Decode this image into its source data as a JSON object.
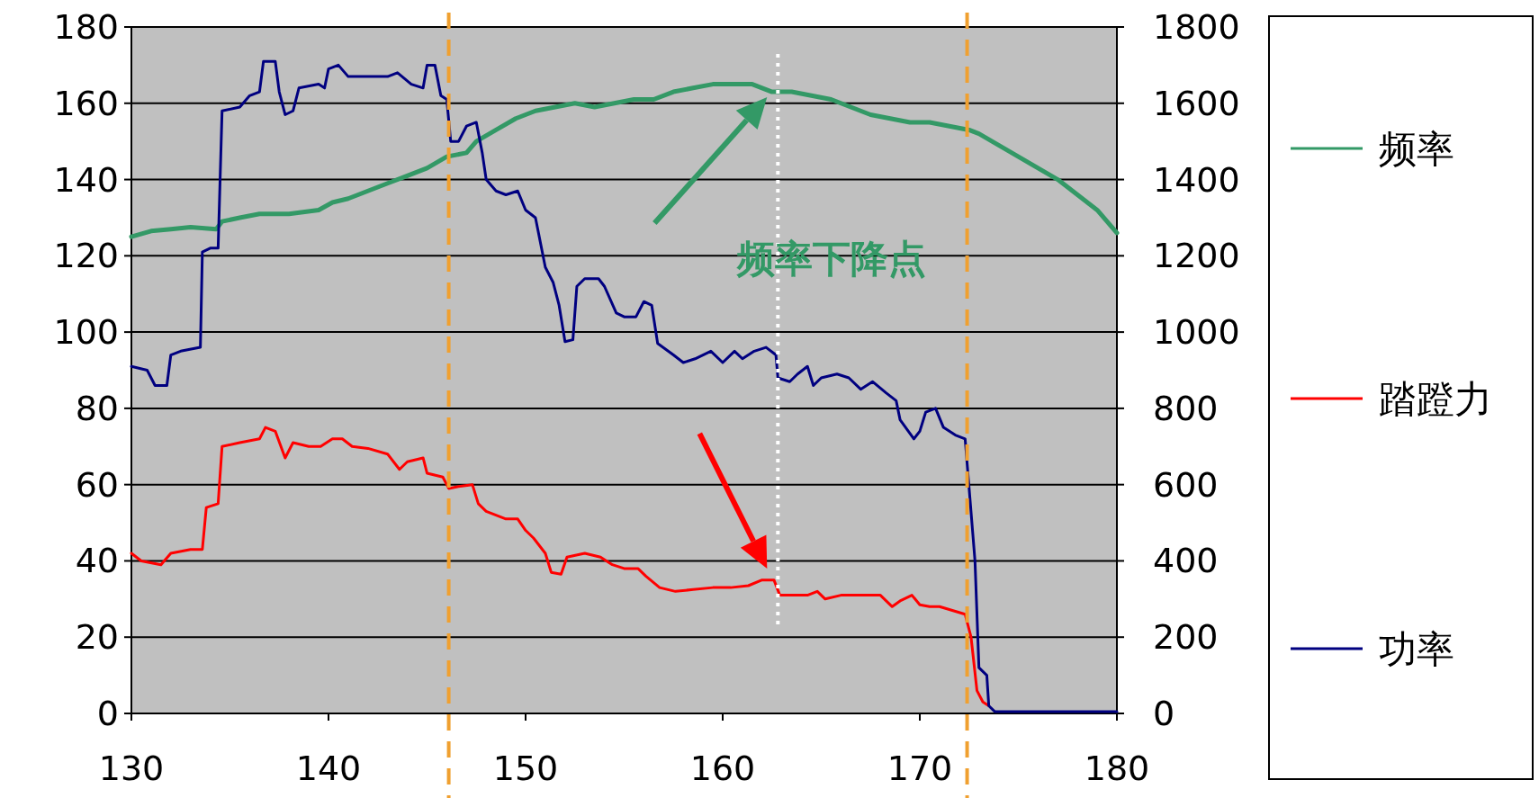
{
  "chart_data": {
    "type": "line",
    "xlim": [
      130,
      180
    ],
    "xticks": [
      130,
      140,
      150,
      160,
      170,
      180
    ],
    "ylim": [
      0,
      180
    ],
    "yticks": [
      0,
      20,
      40,
      60,
      80,
      100,
      120,
      140,
      160,
      180
    ],
    "y2lim": [
      0,
      1800
    ],
    "y2ticks": [
      0,
      200,
      400,
      600,
      800,
      1000,
      1200,
      1400,
      1600,
      1800
    ],
    "grid": "y",
    "legend": "right",
    "series": [
      {
        "name": "频率",
        "color": "#339966",
        "x": [
          130,
          131,
          132,
          133,
          134.3,
          134.6,
          135.5,
          136.5,
          138,
          139.5,
          140.2,
          141,
          142,
          143,
          144,
          145,
          146,
          147,
          147.5,
          148.5,
          149.5,
          150.5,
          151.5,
          152.5,
          153.5,
          154.5,
          155.5,
          156.5,
          157.5,
          158.5,
          159.5,
          160.5,
          161.5,
          162,
          162.5,
          163.5,
          164.5,
          165.5,
          166.5,
          167.5,
          168.5,
          169.5,
          170.5,
          171.5,
          172.5,
          173,
          174,
          175,
          176,
          177,
          178,
          179,
          180
        ],
        "values": [
          125,
          126.5,
          127,
          127.5,
          127,
          129,
          130,
          131,
          131,
          132,
          134,
          135,
          137,
          139,
          141,
          143,
          146,
          147,
          150,
          153,
          156,
          158,
          159,
          160,
          159,
          160,
          161,
          161,
          163,
          164,
          165,
          165,
          165,
          164,
          163,
          163,
          162,
          161,
          159,
          157,
          156,
          155,
          155,
          154,
          153,
          152,
          149,
          146,
          143,
          140,
          136,
          132,
          126
        ]
      },
      {
        "name": "踏蹬力",
        "color": "#ff0000",
        "x": [
          130,
          130.5,
          131.5,
          132,
          133,
          133.6,
          133.8,
          134.4,
          134.6,
          135.5,
          136.5,
          136.8,
          137.3,
          137.8,
          138.2,
          139,
          139.6,
          140.2,
          140.7,
          141.2,
          142,
          143,
          143.6,
          144,
          144.8,
          145,
          145.8,
          146.1,
          146.6,
          147.3,
          147.6,
          148,
          149,
          149.6,
          150,
          150.4,
          151,
          151.3,
          151.8,
          152.1,
          153,
          153.8,
          154.4,
          155,
          155.7,
          156.1,
          156.8,
          157.6,
          158.5,
          159.5,
          160.4,
          161.3,
          162,
          162.6,
          162.9,
          163.6,
          164.3,
          164.8,
          165.2,
          166,
          167,
          168,
          168.6,
          169,
          169.6,
          170,
          170.5,
          171,
          172.3,
          172.6,
          172.9,
          173.2,
          173.5
        ],
        "values": [
          42,
          40,
          39,
          42,
          43,
          43,
          54,
          55,
          70,
          71,
          72,
          75,
          74,
          67,
          71,
          70,
          70,
          72,
          72,
          70,
          69.5,
          68,
          64,
          66,
          67,
          63,
          62,
          59,
          59.5,
          60,
          55,
          53,
          51,
          51,
          48,
          46,
          42,
          37,
          36.5,
          41,
          42,
          41,
          39,
          38,
          38,
          36,
          33,
          32,
          32.5,
          33,
          33,
          33.5,
          35,
          35,
          31,
          31,
          31,
          32,
          30,
          31,
          31,
          31,
          28,
          29.5,
          31,
          28.5,
          28,
          28,
          26,
          20,
          6,
          3,
          2
        ]
      },
      {
        "name": "功率",
        "color": "#000080",
        "axis": "y2",
        "x": [
          130,
          130.8,
          131.2,
          131.8,
          132,
          132.5,
          133.5,
          133.6,
          134,
          134.4,
          134.6,
          135.5,
          136,
          136.5,
          136.7,
          137.3,
          137.5,
          137.8,
          138.2,
          138.5,
          139.5,
          139.8,
          140,
          140.5,
          141,
          142,
          143,
          143.5,
          144.2,
          144.8,
          145,
          145.4,
          145.7,
          146,
          146.2,
          146.6,
          147,
          147.5,
          147.8,
          148,
          148.5,
          149,
          149.6,
          150,
          150.5,
          151,
          151.4,
          151.7,
          152,
          152.4,
          152.6,
          153,
          153.7,
          154,
          154.6,
          155,
          155.6,
          156,
          156.4,
          156.7,
          157.5,
          158,
          158.6,
          159.4,
          160,
          160.6,
          161,
          161.6,
          162.2,
          162.7,
          162.8,
          163.4,
          163.8,
          164.3,
          164.6,
          165,
          165.8,
          166.4,
          167,
          167.6,
          168.3,
          168.8,
          169,
          169.7,
          170,
          170.3,
          170.8,
          171.2,
          171.8,
          172.3,
          172.8,
          173,
          173.4,
          173.5,
          173.8,
          180
        ],
        "values": [
          910,
          900,
          860,
          860,
          940,
          950,
          960,
          1210,
          1220,
          1220,
          1580,
          1590,
          1620,
          1630,
          1710,
          1710,
          1630,
          1570,
          1580,
          1640,
          1650,
          1640,
          1690,
          1700,
          1670,
          1670,
          1670,
          1680,
          1650,
          1640,
          1700,
          1700,
          1620,
          1610,
          1500,
          1500,
          1540,
          1550,
          1470,
          1400,
          1370,
          1360,
          1370,
          1320,
          1300,
          1170,
          1130,
          1070,
          975,
          980,
          1120,
          1140,
          1140,
          1120,
          1050,
          1040,
          1040,
          1080,
          1070,
          970,
          940,
          920,
          930,
          950,
          920,
          950,
          930,
          950,
          960,
          940,
          880,
          870,
          890,
          910,
          860,
          880,
          890,
          880,
          850,
          870,
          840,
          820,
          770,
          720,
          740,
          790,
          800,
          750,
          730,
          720,
          400,
          120,
          100,
          20,
          5,
          5
        ]
      }
    ],
    "ref_lines": [
      {
        "axis": "x",
        "value": 146.1,
        "color": "#f0a030",
        "line_style": "dashed"
      },
      {
        "axis": "x",
        "value": 172.4,
        "color": "#f0a030",
        "line_style": "dashed"
      },
      {
        "axis": "x",
        "value": 162.8,
        "color": "#ffffff",
        "line_style": "dotted"
      }
    ],
    "annotations": [
      "频率下降点"
    ]
  }
}
